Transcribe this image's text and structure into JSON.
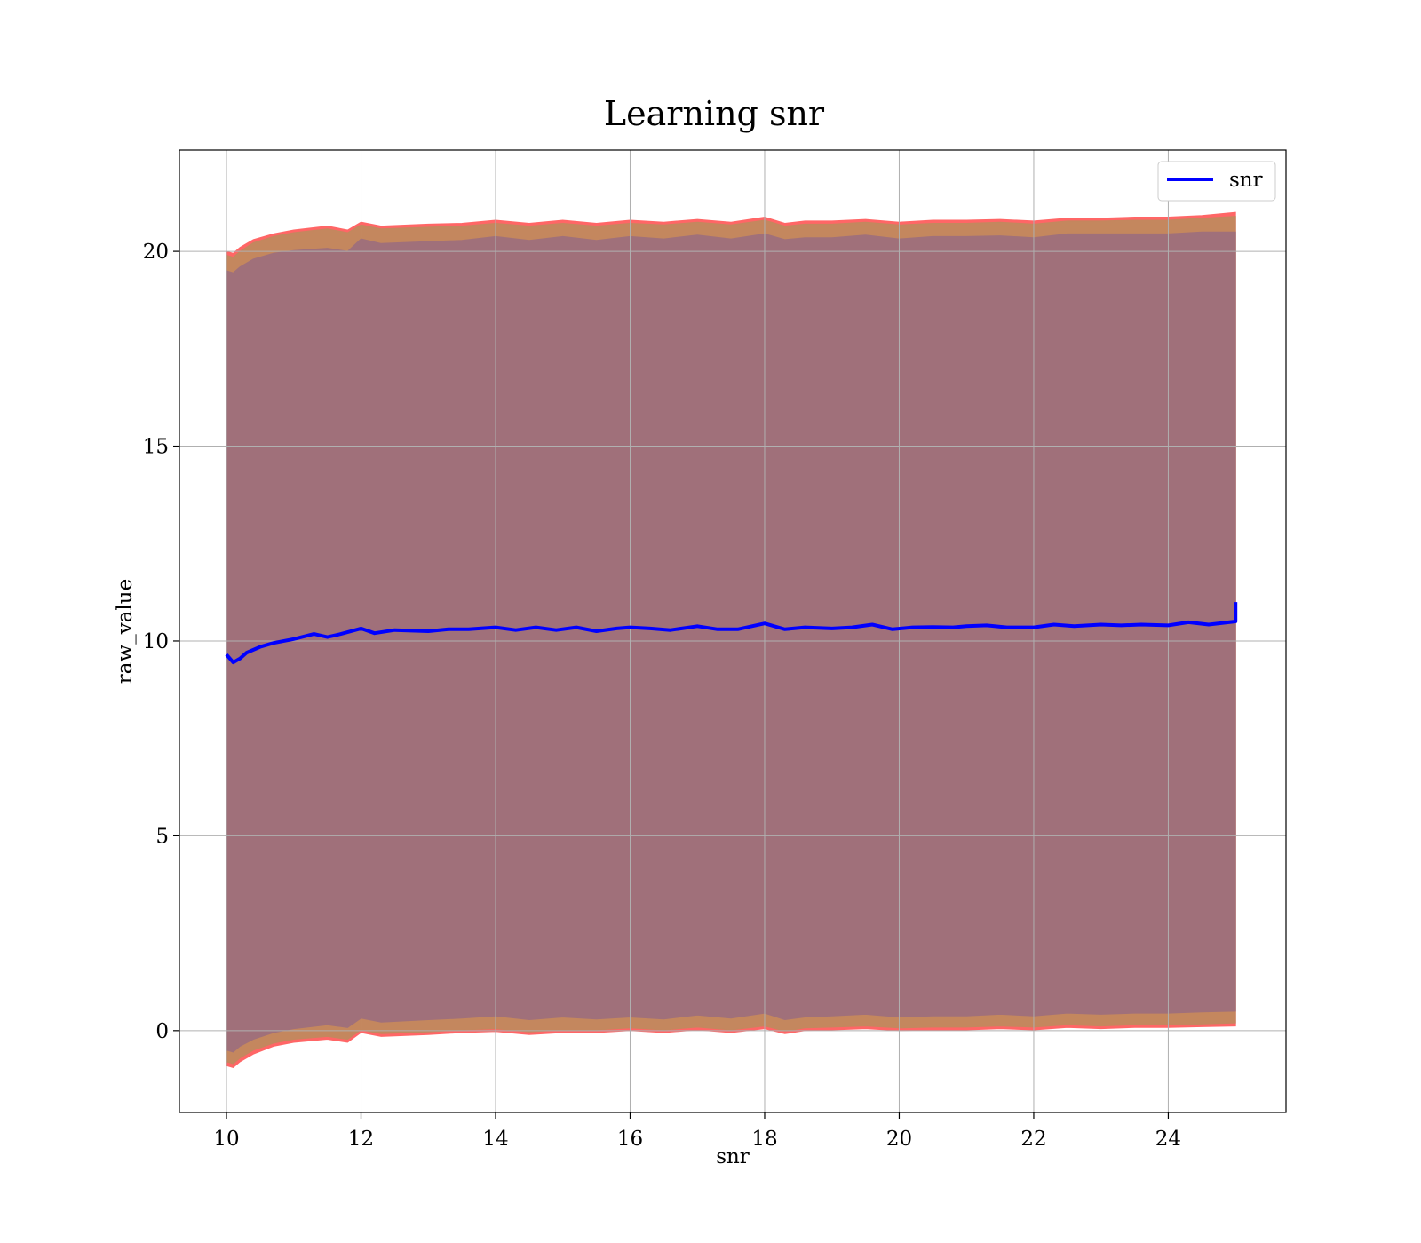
{
  "chart_data": {
    "type": "line",
    "title": "Learning snr",
    "xlabel": "snr",
    "ylabel": "raw_value",
    "xlim": [
      9.3,
      25.75
    ],
    "ylim": [
      -2.1,
      22.6
    ],
    "xticks": [
      10,
      12,
      14,
      16,
      18,
      20,
      22,
      24
    ],
    "yticks": [
      0,
      5,
      10,
      15,
      20
    ],
    "grid": true,
    "legend_position": "top-right",
    "series": [
      {
        "name": "snr",
        "color": "#0000ff",
        "x": [
          10.0,
          10.1,
          10.2,
          10.3,
          10.5,
          10.7,
          11.0,
          11.3,
          11.5,
          11.7,
          12.0,
          12.2,
          12.5,
          13.0,
          13.3,
          13.6,
          14.0,
          14.3,
          14.6,
          14.9,
          15.2,
          15.5,
          15.8,
          16.0,
          16.3,
          16.6,
          17.0,
          17.3,
          17.6,
          18.0,
          18.3,
          18.6,
          19.0,
          19.3,
          19.6,
          19.9,
          20.2,
          20.5,
          20.8,
          21.0,
          21.3,
          21.6,
          22.0,
          22.3,
          22.6,
          23.0,
          23.3,
          23.6,
          24.0,
          24.3,
          24.6,
          24.9,
          25.0,
          25.0
        ],
        "values": [
          9.65,
          9.45,
          9.55,
          9.7,
          9.85,
          9.95,
          10.05,
          10.18,
          10.1,
          10.18,
          10.32,
          10.2,
          10.28,
          10.25,
          10.3,
          10.3,
          10.35,
          10.28,
          10.35,
          10.28,
          10.35,
          10.25,
          10.32,
          10.35,
          10.32,
          10.28,
          10.38,
          10.3,
          10.3,
          10.45,
          10.3,
          10.35,
          10.32,
          10.35,
          10.42,
          10.3,
          10.35,
          10.36,
          10.35,
          10.38,
          10.4,
          10.35,
          10.35,
          10.42,
          10.38,
          10.42,
          10.4,
          10.42,
          10.4,
          10.48,
          10.42,
          10.48,
          10.5,
          11.0
        ]
      }
    ],
    "bands": [
      {
        "color": "#ff6666",
        "x": [
          10.0,
          10.1,
          10.2,
          10.4,
          10.7,
          11.0,
          11.5,
          11.8,
          12.0,
          12.3,
          13.0,
          13.5,
          14.0,
          14.5,
          15.0,
          15.5,
          16.0,
          16.5,
          17.0,
          17.5,
          18.0,
          18.3,
          18.6,
          19.0,
          19.5,
          20.0,
          20.5,
          21.0,
          21.5,
          22.0,
          22.5,
          23.0,
          23.5,
          24.0,
          24.5,
          25.0
        ],
        "upper": [
          20.0,
          19.95,
          20.1,
          20.3,
          20.45,
          20.55,
          20.65,
          20.55,
          20.75,
          20.65,
          20.7,
          20.72,
          20.8,
          20.72,
          20.8,
          20.72,
          20.8,
          20.75,
          20.82,
          20.75,
          20.88,
          20.72,
          20.78,
          20.78,
          20.82,
          20.75,
          20.8,
          20.8,
          20.82,
          20.78,
          20.85,
          20.85,
          20.88,
          20.88,
          20.92,
          21.0
        ],
        "lower": [
          -0.9,
          -0.95,
          -0.8,
          -0.6,
          -0.4,
          -0.3,
          -0.22,
          -0.3,
          -0.05,
          -0.15,
          -0.1,
          -0.05,
          -0.02,
          -0.1,
          -0.05,
          -0.05,
          0.0,
          -0.05,
          0.02,
          -0.05,
          0.05,
          -0.08,
          0.0,
          0.02,
          0.05,
          0.0,
          0.02,
          0.02,
          0.05,
          0.02,
          0.08,
          0.05,
          0.08,
          0.08,
          0.1,
          0.12
        ]
      },
      {
        "color": "#c4875e",
        "x": [
          10.0,
          10.1,
          10.2,
          10.4,
          10.7,
          11.0,
          11.5,
          11.8,
          12.0,
          12.3,
          13.0,
          13.5,
          14.0,
          14.5,
          15.0,
          15.5,
          16.0,
          16.5,
          17.0,
          17.5,
          18.0,
          18.3,
          18.6,
          19.0,
          19.5,
          20.0,
          20.5,
          21.0,
          21.5,
          22.0,
          22.5,
          23.0,
          23.5,
          24.0,
          24.5,
          25.0
        ],
        "upper": [
          19.9,
          19.85,
          20.0,
          20.22,
          20.38,
          20.48,
          20.58,
          20.48,
          20.68,
          20.58,
          20.62,
          20.65,
          20.72,
          20.65,
          20.72,
          20.65,
          20.72,
          20.68,
          20.75,
          20.68,
          20.8,
          20.65,
          20.7,
          20.7,
          20.75,
          20.68,
          20.72,
          20.72,
          20.75,
          20.7,
          20.78,
          20.78,
          20.8,
          20.8,
          20.85,
          20.9
        ],
        "lower": [
          -0.8,
          -0.85,
          -0.7,
          -0.5,
          -0.32,
          -0.22,
          -0.15,
          -0.22,
          0.02,
          -0.08,
          -0.03,
          0.02,
          0.05,
          -0.03,
          0.02,
          0.02,
          0.07,
          0.02,
          0.09,
          0.02,
          0.12,
          -0.01,
          0.07,
          0.09,
          0.12,
          0.07,
          0.09,
          0.09,
          0.12,
          0.09,
          0.15,
          0.12,
          0.15,
          0.15,
          0.17,
          0.2
        ]
      },
      {
        "color": "#a0707a",
        "x": [
          10.0,
          10.1,
          10.2,
          10.4,
          10.7,
          11.0,
          11.5,
          11.8,
          12.0,
          12.3,
          13.0,
          13.5,
          14.0,
          14.5,
          15.0,
          15.5,
          16.0,
          16.5,
          17.0,
          17.5,
          18.0,
          18.3,
          18.6,
          19.0,
          19.5,
          20.0,
          20.5,
          21.0,
          21.5,
          22.0,
          22.5,
          23.0,
          23.5,
          24.0,
          24.5,
          25.0
        ],
        "upper": [
          19.5,
          19.45,
          19.6,
          19.8,
          19.95,
          20.02,
          20.08,
          20.0,
          20.32,
          20.2,
          20.25,
          20.28,
          20.38,
          20.28,
          20.38,
          20.28,
          20.38,
          20.32,
          20.42,
          20.32,
          20.45,
          20.3,
          20.35,
          20.35,
          20.42,
          20.32,
          20.38,
          20.38,
          20.4,
          20.35,
          20.45,
          20.45,
          20.45,
          20.45,
          20.5,
          20.5
        ],
        "lower": [
          -0.5,
          -0.55,
          -0.4,
          -0.22,
          -0.05,
          0.05,
          0.15,
          0.08,
          0.32,
          0.22,
          0.28,
          0.32,
          0.38,
          0.28,
          0.35,
          0.3,
          0.35,
          0.3,
          0.4,
          0.32,
          0.45,
          0.28,
          0.35,
          0.38,
          0.42,
          0.35,
          0.38,
          0.38,
          0.42,
          0.38,
          0.45,
          0.42,
          0.45,
          0.45,
          0.48,
          0.5
        ]
      }
    ]
  }
}
